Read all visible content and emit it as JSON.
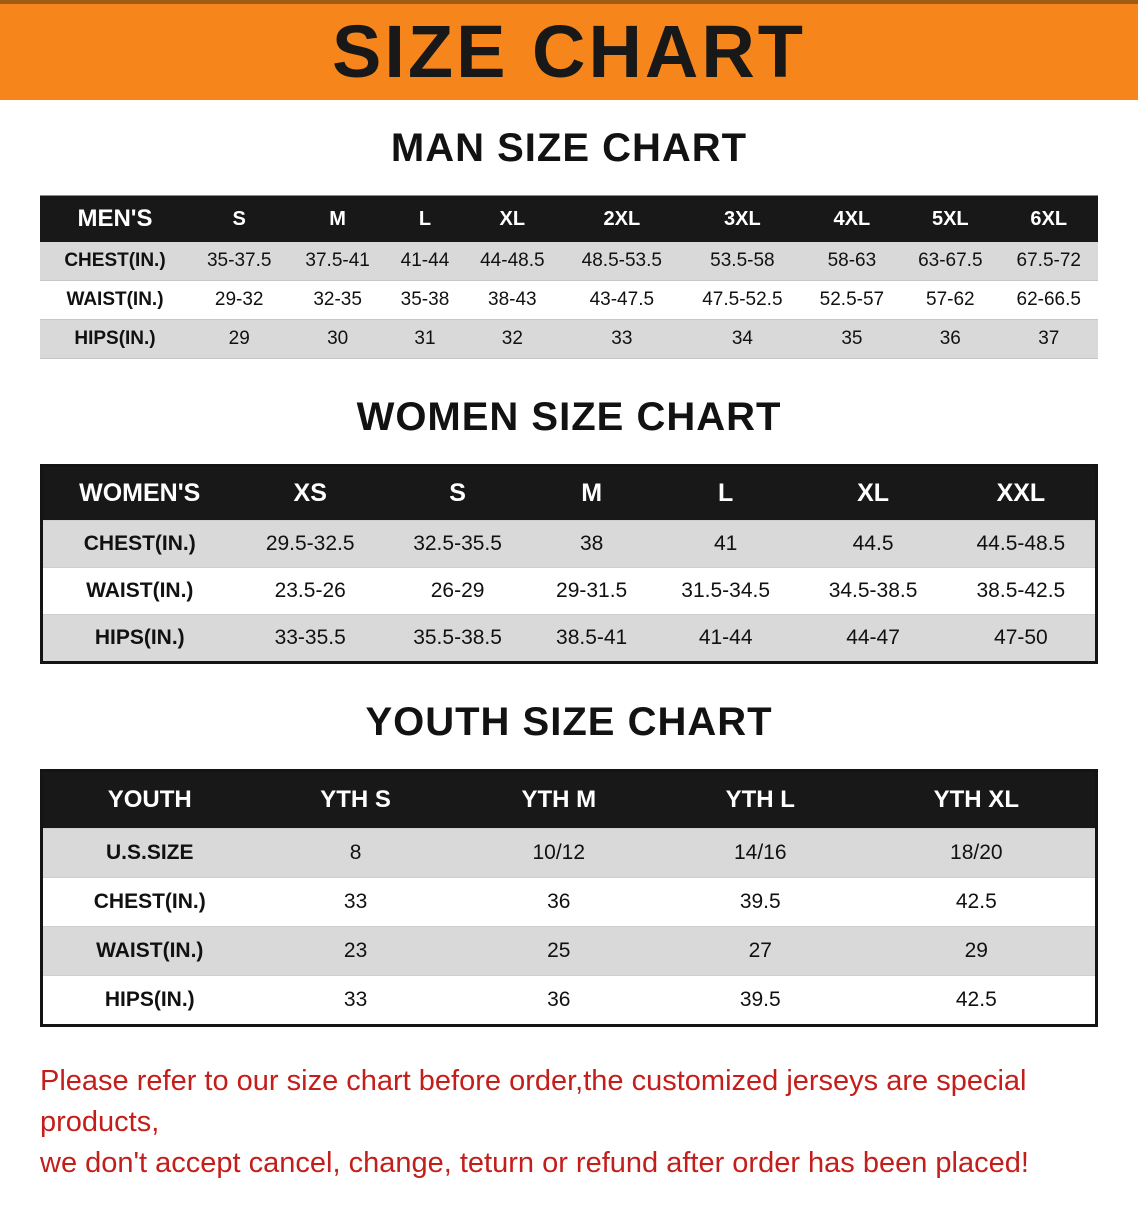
{
  "banner": {
    "title": "SIZE CHART",
    "bg_color": "#f6861c",
    "text_color": "#181818"
  },
  "sections": [
    {
      "id": "men",
      "heading": "MAN SIZE CHART",
      "table": {
        "header": [
          "MEN'S",
          "S",
          "M",
          "L",
          "XL",
          "2XL",
          "3XL",
          "4XL",
          "5XL",
          "6XL"
        ],
        "rows": [
          [
            "CHEST(IN.)",
            "35-37.5",
            "37.5-41",
            "41-44",
            "44-48.5",
            "48.5-53.5",
            "53.5-58",
            "58-63",
            "63-67.5",
            "67.5-72"
          ],
          [
            "WAIST(IN.)",
            "29-32",
            "32-35",
            "35-38",
            "38-43",
            "43-47.5",
            "47.5-52.5",
            "52.5-57",
            "57-62",
            "62-66.5"
          ],
          [
            "HIPS(IN.)",
            "29",
            "30",
            "31",
            "32",
            "33",
            "34",
            "35",
            "36",
            "37"
          ]
        ]
      }
    },
    {
      "id": "women",
      "heading": "WOMEN SIZE CHART",
      "table": {
        "header": [
          "WOMEN'S",
          "XS",
          "S",
          "M",
          "L",
          "XL",
          "XXL"
        ],
        "rows": [
          [
            "CHEST(IN.)",
            "29.5-32.5",
            "32.5-35.5",
            "38",
            "41",
            "44.5",
            "44.5-48.5"
          ],
          [
            "WAIST(IN.)",
            "23.5-26",
            "26-29",
            "29-31.5",
            "31.5-34.5",
            "34.5-38.5",
            "38.5-42.5"
          ],
          [
            "HIPS(IN.)",
            "33-35.5",
            "35.5-38.5",
            "38.5-41",
            "41-44",
            "44-47",
            "47-50"
          ]
        ]
      }
    },
    {
      "id": "youth",
      "heading": "YOUTH SIZE CHART",
      "table": {
        "header": [
          "YOUTH",
          "YTH S",
          "YTH M",
          "YTH L",
          "YTH XL"
        ],
        "rows": [
          [
            "U.S.SIZE",
            "8",
            "10/12",
            "14/16",
            "18/20"
          ],
          [
            "CHEST(IN.)",
            "33",
            "36",
            "39.5",
            "42.5"
          ],
          [
            "WAIST(IN.)",
            "23",
            "25",
            "27",
            "29"
          ],
          [
            "HIPS(IN.)",
            "33",
            "36",
            "39.5",
            "42.5"
          ]
        ]
      }
    }
  ],
  "footer": {
    "text_color": "#c41e1a",
    "lines": [
      "Please refer to our size chart before order,the customized jerseys are special products,",
      "we don't accept cancel, change, teturn or refund after order has been placed!"
    ]
  }
}
